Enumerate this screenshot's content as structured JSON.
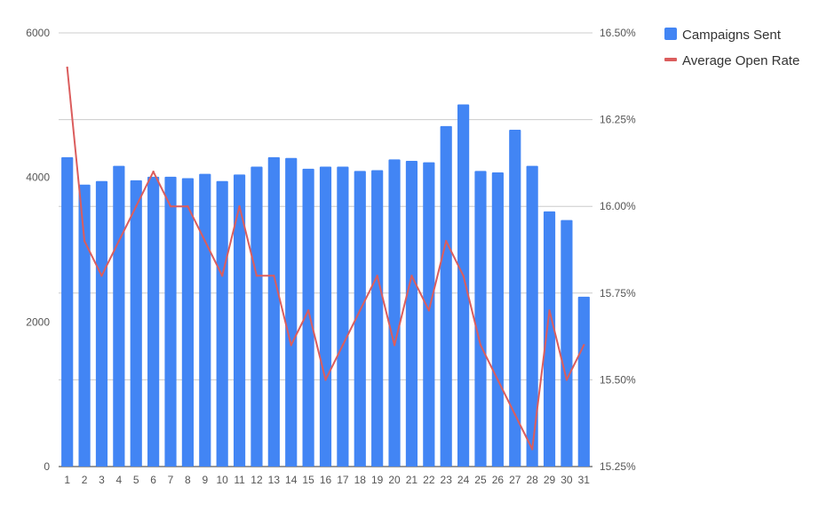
{
  "chart_data": {
    "type": "bar",
    "categories": [
      "1",
      "2",
      "3",
      "4",
      "5",
      "6",
      "7",
      "8",
      "9",
      "10",
      "11",
      "12",
      "13",
      "14",
      "15",
      "16",
      "17",
      "18",
      "19",
      "20",
      "21",
      "22",
      "23",
      "24",
      "25",
      "26",
      "27",
      "28",
      "29",
      "30",
      "31"
    ],
    "series": [
      {
        "name": "Campaigns Sent",
        "type": "bar",
        "axis": "left",
        "color": "#4285f4",
        "values": [
          4280,
          3900,
          3950,
          4160,
          3960,
          4010,
          4010,
          3990,
          4050,
          3950,
          4040,
          4150,
          4280,
          4270,
          4120,
          4150,
          4150,
          4090,
          4100,
          4250,
          4230,
          4210,
          4710,
          5010,
          4090,
          4070,
          4660,
          4160,
          3530,
          3410,
          2350
        ]
      },
      {
        "name": "Average Open Rate",
        "type": "line",
        "axis": "right",
        "color": "#db5d5d",
        "values": [
          16.4,
          15.9,
          15.8,
          15.9,
          16.0,
          16.1,
          16.0,
          16.0,
          15.9,
          15.8,
          16.0,
          15.8,
          15.8,
          15.6,
          15.7,
          15.5,
          15.6,
          15.7,
          15.8,
          15.6,
          15.8,
          15.7,
          15.9,
          15.8,
          15.6,
          15.5,
          15.4,
          15.3,
          15.7,
          15.5,
          15.6
        ]
      }
    ],
    "left_axis": {
      "min": 0,
      "max": 6000,
      "ticks": [
        {
          "value": 0,
          "label": "0"
        },
        {
          "value": 2000,
          "label": "2000"
        },
        {
          "value": 4000,
          "label": "4000"
        },
        {
          "value": 6000,
          "label": "6000"
        }
      ]
    },
    "right_axis": {
      "min": 15.25,
      "max": 16.5,
      "ticks": [
        {
          "value": 15.25,
          "label": "15.25%"
        },
        {
          "value": 15.5,
          "label": "15.50%"
        },
        {
          "value": 15.75,
          "label": "15.75%"
        },
        {
          "value": 16.0,
          "label": "16.00%"
        },
        {
          "value": 16.25,
          "label": "16.25%"
        },
        {
          "value": 16.5,
          "label": "16.50%"
        }
      ]
    },
    "title": "",
    "xlabel": "",
    "ylabel": "",
    "grid": true,
    "legend_position": "top-right"
  }
}
